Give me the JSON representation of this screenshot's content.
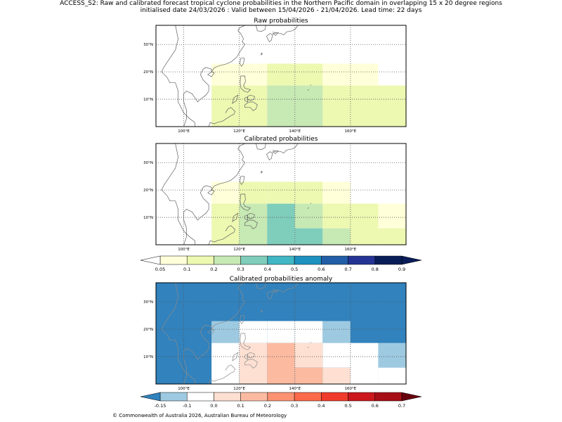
{
  "header": {
    "title_line1": "ACCESS_S2: Raw and calibrated forecast tropical cyclone probabilities in the Northern Pacific domain in overlapping 15 x 20 degree regions",
    "title_line2": "initialised date 24/03/2026 :  Valid between 15/04/2026 - 21/04/2026. Lead time: 22 days"
  },
  "maps": [
    {
      "title": "Raw probabilities"
    },
    {
      "title": "Calibrated probabilities"
    },
    {
      "title": "Calibrated probabilities anomaly"
    }
  ],
  "axis": {
    "lon_labels": [
      "100°E",
      "120°E",
      "140°E",
      "160°E"
    ],
    "lat_labels": [
      "30°N",
      "20°N",
      "10°N"
    ]
  },
  "colorbar_prob": {
    "ticks": [
      "0.05",
      "0.1",
      "0.2",
      "0.3",
      "0.4",
      "0.5",
      "0.6",
      "0.7",
      "0.8",
      "0.9"
    ],
    "colors": [
      "#ffffd9",
      "#edf8b1",
      "#c7e9b4",
      "#7fcdbb",
      "#41b6c4",
      "#1d91c0",
      "#225ea8",
      "#253494",
      "#081d58"
    ]
  },
  "colorbar_anom": {
    "ticks": [
      "-0.15",
      "-0.1",
      "0.0",
      "0.1",
      "0.2",
      "0.3",
      "0.4",
      "0.5",
      "0.6",
      "0.7"
    ],
    "colors": [
      "#3182bd",
      "#9ecae1",
      "#ffffff",
      "#fee0d2",
      "#fcbba1",
      "#fc9272",
      "#fb6a4a",
      "#ef3b2c",
      "#cb181d",
      "#a50f15",
      "#67000d"
    ]
  },
  "footer": "© Commonwealth of Australia 2026, Australian Bureau of Meteorology",
  "chart_data": [
    {
      "type": "heatmap",
      "title": "Raw probabilities",
      "xlim": [
        90,
        180
      ],
      "ylim": [
        0,
        37
      ],
      "cells": [
        {
          "lon": [
            110,
            120
          ],
          "lat": [
            15,
            23
          ],
          "value": 0.07
        },
        {
          "lon": [
            120,
            130
          ],
          "lat": [
            15,
            23
          ],
          "value": 0.07
        },
        {
          "lon": [
            130,
            140
          ],
          "lat": [
            15,
            23
          ],
          "value": 0.12
        },
        {
          "lon": [
            140,
            150
          ],
          "lat": [
            15,
            23
          ],
          "value": 0.12
        },
        {
          "lon": [
            150,
            160
          ],
          "lat": [
            15,
            23
          ],
          "value": 0.07
        },
        {
          "lon": [
            160,
            170
          ],
          "lat": [
            15,
            23
          ],
          "value": 0.07
        },
        {
          "lon": [
            110,
            120
          ],
          "lat": [
            0,
            15
          ],
          "value": 0.12
        },
        {
          "lon": [
            120,
            130
          ],
          "lat": [
            0,
            15
          ],
          "value": 0.12
        },
        {
          "lon": [
            130,
            140
          ],
          "lat": [
            0,
            15
          ],
          "value": 0.22
        },
        {
          "lon": [
            140,
            150
          ],
          "lat": [
            0,
            15
          ],
          "value": 0.22
        },
        {
          "lon": [
            150,
            160
          ],
          "lat": [
            0,
            15
          ],
          "value": 0.12
        },
        {
          "lon": [
            160,
            170
          ],
          "lat": [
            0,
            15
          ],
          "value": 0.12
        },
        {
          "lon": [
            170,
            180
          ],
          "lat": [
            0,
            15
          ],
          "value": 0.12
        }
      ]
    },
    {
      "type": "heatmap",
      "title": "Calibrated probabilities",
      "xlim": [
        90,
        180
      ],
      "ylim": [
        0,
        37
      ],
      "cells": [
        {
          "lon": [
            110,
            120
          ],
          "lat": [
            15,
            23
          ],
          "value": 0.07
        },
        {
          "lon": [
            120,
            130
          ],
          "lat": [
            15,
            23
          ],
          "value": 0.12
        },
        {
          "lon": [
            130,
            140
          ],
          "lat": [
            15,
            23
          ],
          "value": 0.12
        },
        {
          "lon": [
            140,
            150
          ],
          "lat": [
            15,
            23
          ],
          "value": 0.12
        },
        {
          "lon": [
            150,
            160
          ],
          "lat": [
            15,
            23
          ],
          "value": 0.07
        },
        {
          "lon": [
            110,
            120
          ],
          "lat": [
            0,
            15
          ],
          "value": 0.12
        },
        {
          "lon": [
            120,
            130
          ],
          "lat": [
            0,
            15
          ],
          "value": 0.22
        },
        {
          "lon": [
            130,
            140
          ],
          "lat": [
            0,
            15
          ],
          "value": 0.32
        },
        {
          "lon": [
            140,
            150
          ],
          "lat": [
            6,
            15
          ],
          "value": 0.22
        },
        {
          "lon": [
            140,
            150
          ],
          "lat": [
            0,
            6
          ],
          "value": 0.32
        },
        {
          "lon": [
            150,
            160
          ],
          "lat": [
            6,
            15
          ],
          "value": 0.12
        },
        {
          "lon": [
            150,
            160
          ],
          "lat": [
            0,
            6
          ],
          "value": 0.22
        },
        {
          "lon": [
            160,
            170
          ],
          "lat": [
            0,
            15
          ],
          "value": 0.12
        },
        {
          "lon": [
            170,
            180
          ],
          "lat": [
            6,
            15
          ],
          "value": 0.07
        },
        {
          "lon": [
            170,
            180
          ],
          "lat": [
            0,
            6
          ],
          "value": 0.12
        }
      ]
    },
    {
      "type": "heatmap",
      "title": "Calibrated probabilities anomaly",
      "xlim": [
        90,
        180
      ],
      "ylim": [
        0,
        37
      ],
      "background_value": -0.15,
      "cells": [
        {
          "lon": [
            110,
            120
          ],
          "lat": [
            15,
            23
          ],
          "value": -0.1
        },
        {
          "lon": [
            120,
            130
          ],
          "lat": [
            15,
            23
          ],
          "value": 0.0
        },
        {
          "lon": [
            130,
            140
          ],
          "lat": [
            15,
            23
          ],
          "value": 0.0
        },
        {
          "lon": [
            140,
            150
          ],
          "lat": [
            15,
            23
          ],
          "value": 0.0
        },
        {
          "lon": [
            150,
            160
          ],
          "lat": [
            15,
            23
          ],
          "value": -0.1
        },
        {
          "lon": [
            110,
            120
          ],
          "lat": [
            0,
            15
          ],
          "value": 0.0
        },
        {
          "lon": [
            120,
            130
          ],
          "lat": [
            0,
            15
          ],
          "value": 0.05
        },
        {
          "lon": [
            130,
            140
          ],
          "lat": [
            0,
            15
          ],
          "value": 0.15
        },
        {
          "lon": [
            140,
            150
          ],
          "lat": [
            6,
            15
          ],
          "value": 0.05
        },
        {
          "lon": [
            140,
            150
          ],
          "lat": [
            0,
            6
          ],
          "value": 0.15
        },
        {
          "lon": [
            150,
            160
          ],
          "lat": [
            6,
            15
          ],
          "value": 0.0
        },
        {
          "lon": [
            150,
            160
          ],
          "lat": [
            0,
            6
          ],
          "value": 0.05
        },
        {
          "lon": [
            160,
            170
          ],
          "lat": [
            0,
            15
          ],
          "value": 0.0
        },
        {
          "lon": [
            170,
            180
          ],
          "lat": [
            6,
            15
          ],
          "value": -0.1
        },
        {
          "lon": [
            170,
            180
          ],
          "lat": [
            0,
            6
          ],
          "value": 0.0
        }
      ]
    }
  ]
}
